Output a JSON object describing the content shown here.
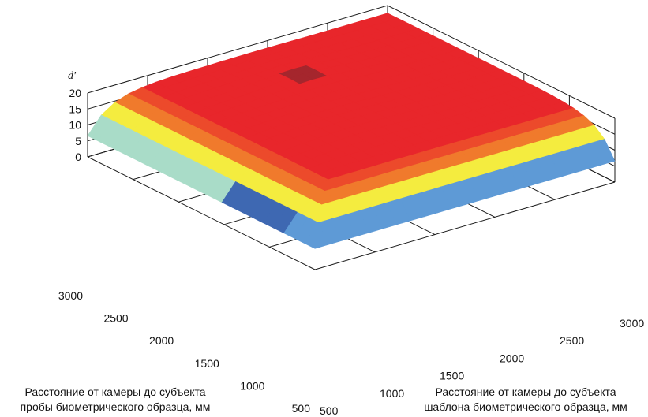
{
  "chart_data": {
    "type": "surface3d",
    "zlabel": "d'",
    "xlabel": [
      "Расстояние от камеры до субъекта",
      "шаблона биометрического образца, мм"
    ],
    "ylabel": [
      "Расстояние от камеры до субъекта",
      "пробы биометрического образца, мм"
    ],
    "xlim": [
      500,
      3000
    ],
    "ylim": [
      500,
      3000
    ],
    "zlim": [
      0,
      20
    ],
    "x_ticks": [
      "500",
      "1000",
      "1500",
      "2000",
      "2500",
      "3000"
    ],
    "y_ticks": [
      "500",
      "1000",
      "1500",
      "2000",
      "2500",
      "3000"
    ],
    "z_ticks": [
      "0",
      "5",
      "10",
      "15",
      "20"
    ],
    "grid": true,
    "colors": {
      "dark_red": "#a5262d",
      "red": "#e8262b",
      "orange_red": "#ec4a2b",
      "orange": "#f07a2c",
      "yellow": "#f4ec3f",
      "green": "#a8cf55",
      "cyan": "#a9dcc8",
      "blue": "#3e68b2",
      "light_blue": "#5e9ad6"
    }
  }
}
